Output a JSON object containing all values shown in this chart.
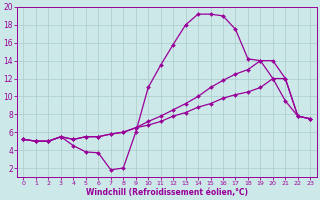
{
  "xlabel": "Windchill (Refroidissement éolien,°C)",
  "background_color": "#cce8e8",
  "grid_color": "#aacccc",
  "line_color": "#990099",
  "xlim": [
    -0.5,
    23.5
  ],
  "ylim": [
    1,
    20
  ],
  "xticks": [
    0,
    1,
    2,
    3,
    4,
    5,
    6,
    7,
    8,
    9,
    10,
    11,
    12,
    13,
    14,
    15,
    16,
    17,
    18,
    19,
    20,
    21,
    22,
    23
  ],
  "yticks": [
    2,
    4,
    6,
    8,
    10,
    12,
    14,
    16,
    18,
    20
  ],
  "series": [
    [
      5.2,
      5.0,
      5.0,
      5.5,
      4.5,
      3.8,
      3.7,
      1.8,
      2.0,
      6.0,
      11.0,
      13.5,
      15.8,
      18.0,
      19.2,
      19.2,
      19.0,
      17.5,
      14.2,
      14.0,
      12.0,
      9.5,
      7.8,
      7.5
    ],
    [
      5.2,
      5.0,
      5.0,
      5.5,
      5.2,
      5.5,
      5.5,
      5.8,
      6.0,
      6.5,
      7.2,
      7.8,
      8.5,
      9.2,
      10.0,
      11.0,
      11.8,
      12.5,
      13.0,
      14.0,
      14.0,
      12.0,
      7.8,
      7.5
    ],
    [
      5.2,
      5.0,
      5.0,
      5.5,
      5.2,
      5.5,
      5.5,
      5.8,
      6.0,
      6.5,
      6.8,
      7.2,
      7.8,
      8.2,
      8.8,
      9.2,
      9.8,
      10.2,
      10.5,
      11.0,
      12.0,
      12.0,
      7.8,
      7.5
    ]
  ]
}
